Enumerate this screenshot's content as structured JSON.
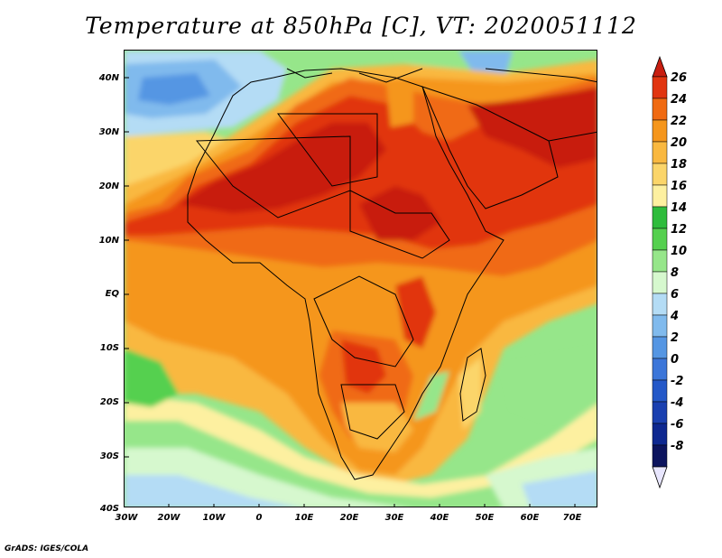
{
  "title": "Temperature at 850hPa [C], VT: 2020051112",
  "credit": "GrADS: IGES/COLA",
  "map": {
    "region": "Africa and Arabian Peninsula",
    "variable": "Temperature at 850hPa",
    "units": "C",
    "lat_labels": [
      "40N",
      "30N",
      "20N",
      "10N",
      "EQ",
      "10S",
      "20S",
      "30S",
      "40S"
    ],
    "lon_labels": [
      "30W",
      "20W",
      "10W",
      "0",
      "10E",
      "20E",
      "30E",
      "40E",
      "50E",
      "60E",
      "70E"
    ]
  },
  "colorbar": {
    "levels": [
      "26",
      "24",
      "22",
      "20",
      "18",
      "16",
      "14",
      "12",
      "10",
      "8",
      "6",
      "4",
      "2",
      "0",
      "-2",
      "-4",
      "-6",
      "-8"
    ],
    "colors": [
      "#c81e10",
      "#e13510",
      "#f06a12",
      "#f5961c",
      "#f9b840",
      "#fbd56a",
      "#fdf0a0",
      "#2ebc3c",
      "#55d04f",
      "#96e68a",
      "#d6f8ce",
      "#b4dcf5",
      "#80baed",
      "#5596e3",
      "#3c76d9",
      "#2458c8",
      "#1a40b0",
      "#0e2890",
      "#0c145e",
      "#e8e6fe"
    ]
  }
}
